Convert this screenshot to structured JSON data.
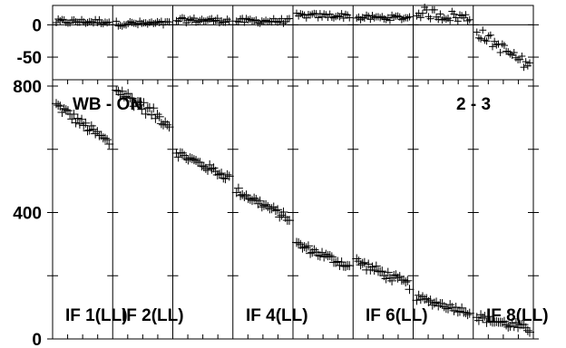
{
  "chart_data": {
    "type": "scatter",
    "title": "",
    "header_text": "2 - 3",
    "source_label": "WB - ON",
    "panels": {
      "phase": {
        "ylabel": "",
        "ylim": [
          -85,
          30
        ],
        "yticks": [
          "0",
          "-50"
        ],
        "zero_line": true
      },
      "amplitude": {
        "ylabel": "",
        "ylim": [
          0,
          820
        ],
        "yticks": [
          "800",
          "400",
          "0"
        ]
      }
    },
    "xlabel": "",
    "columns": [
      {
        "label": "IF 1(LL)",
        "amp_start": 740,
        "amp_end": 620,
        "amp_noise": 15,
        "phase": 5,
        "phase_trend": 0
      },
      {
        "label": "IF 2(LL)",
        "amp_start": 790,
        "amp_end": 680,
        "amp_noise": 18,
        "phase": 2,
        "phase_trend": 0
      },
      {
        "label": "",
        "amp_start": 590,
        "amp_end": 510,
        "amp_noise": 12,
        "phase": 7,
        "phase_trend": 0
      },
      {
        "label": "IF 4(LL)",
        "amp_start": 470,
        "amp_end": 380,
        "amp_noise": 12,
        "phase": 6,
        "phase_trend": 0
      },
      {
        "label": "",
        "amp_start": 300,
        "amp_end": 230,
        "amp_noise": 12,
        "phase": 14,
        "phase_trend": 0
      },
      {
        "label": "IF 6(LL)",
        "amp_start": 245,
        "amp_end": 170,
        "amp_noise": 14,
        "phase": 11,
        "phase_trend": 0
      },
      {
        "label": "",
        "amp_start": 130,
        "amp_end": 85,
        "amp_noise": 10,
        "phase": 20,
        "phase_trend": -10
      },
      {
        "label": "IF 8(LL)",
        "amp_start": 70,
        "amp_end": 30,
        "amp_noise": 12,
        "phase": -10,
        "phase_trend": -55
      }
    ]
  }
}
